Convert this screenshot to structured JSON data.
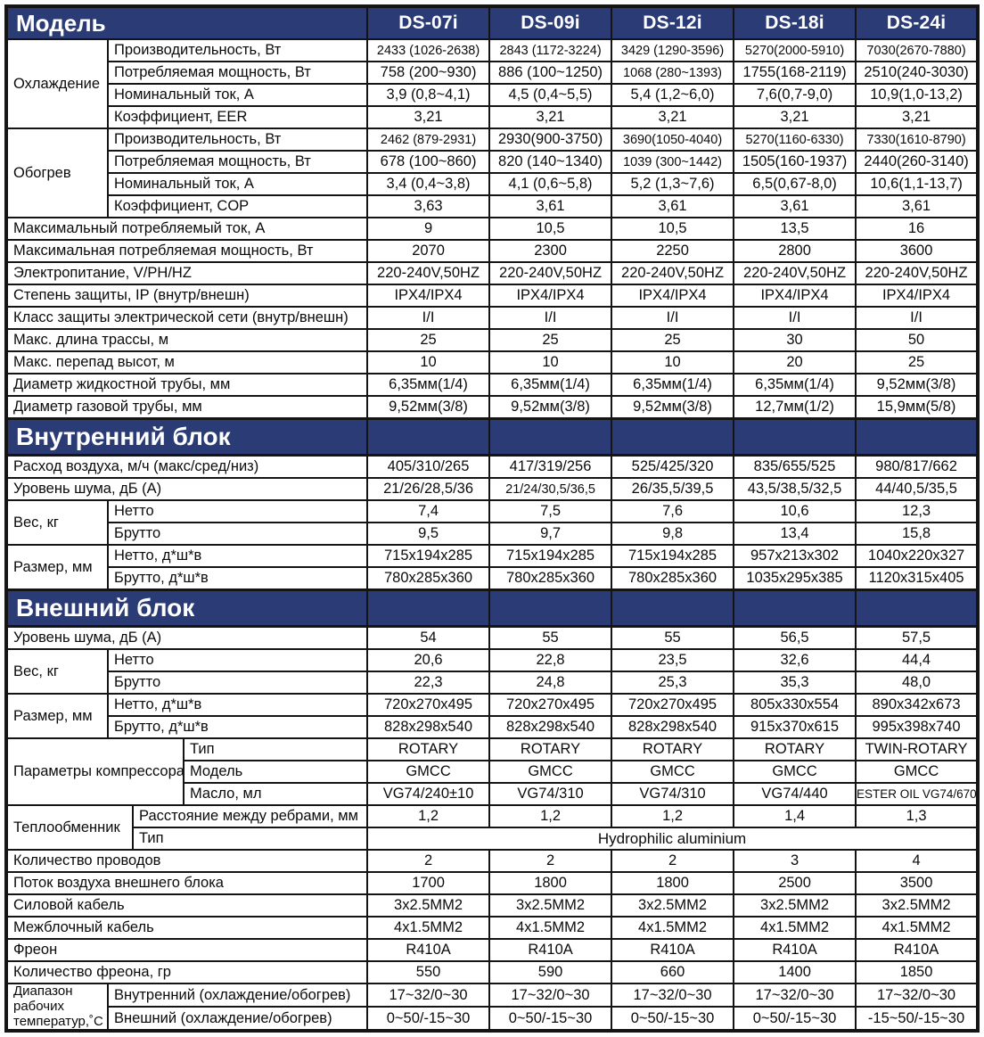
{
  "colors": {
    "accent": "#2b3b76",
    "border": "#141414",
    "text": "#0b0b0b",
    "header_text": "#ffffff"
  },
  "table": {
    "model_label": "Модель",
    "models": [
      "DS-07i",
      "DS-09i",
      "DS-12i",
      "DS-18i",
      "DS-24i"
    ],
    "rows": [
      {
        "group": {
          "label": "Охлаждение",
          "rows": 4,
          "cols": 1
        },
        "label": "Производительность, Вт",
        "values": [
          "2433 (1026-2638)",
          "2843 (1172-3224)",
          "3429 (1290-3596)",
          "5270(2000-5910)",
          "7030(2670-7880)"
        ]
      },
      {
        "label": "Потребляемая мощность, Вт",
        "values": [
          "758 (200~930)",
          "886 (100~1250)",
          "1068 (280~1393)",
          "1755(168-2119)",
          "2510(240-3030)"
        ]
      },
      {
        "label": "Номинальный ток, А",
        "values": [
          "3,9 (0,8~4,1)",
          "4,5 (0,4~5,5)",
          "5,4 (1,2~6,0)",
          "7,6(0,7-9,0)",
          "10,9(1,0-13,2)"
        ]
      },
      {
        "label": "Коэффициент, EER",
        "values": [
          "3,21",
          "3,21",
          "3,21",
          "3,21",
          "3,21"
        ]
      },
      {
        "group": {
          "label": "Обогрев",
          "rows": 4,
          "cols": 1
        },
        "label": "Производительность, Вт",
        "values": [
          "2462 (879-2931)",
          "2930(900-3750)",
          "3690(1050-4040)",
          "5270(1160-6330)",
          "7330(1610-8790)"
        ]
      },
      {
        "label": "Потребляемая мощность, Вт",
        "values": [
          "678 (100~860)",
          "820 (140~1340)",
          "1039 (300~1442)",
          "1505(160-1937)",
          "2440(260-3140)"
        ]
      },
      {
        "label": "Номинальный ток, А",
        "values": [
          "3,4 (0,4~3,8)",
          "4,1 (0,6~5,8)",
          "5,2 (1,3~7,6)",
          "6,5(0,67-8,0)",
          "10,6(1,1-13,7)"
        ]
      },
      {
        "label": "Коэффициент, COP",
        "values": [
          "3,63",
          "3,61",
          "3,61",
          "3,61",
          "3,61"
        ]
      },
      {
        "label": "Максимальный потребляемый ток, А",
        "full": true,
        "values": [
          "9",
          "10,5",
          "10,5",
          "13,5",
          "16"
        ]
      },
      {
        "label": "Максимальная потребляемая мощность, Вт",
        "full": true,
        "values": [
          "2070",
          "2300",
          "2250",
          "2800",
          "3600"
        ]
      },
      {
        "label": "Электропитание, V/PH/HZ",
        "full": true,
        "values": [
          "220-240V,50HZ",
          "220-240V,50HZ",
          "220-240V,50HZ",
          "220-240V,50HZ",
          "220-240V,50HZ"
        ]
      },
      {
        "label": "Степень защиты, IP (внутр/внешн)",
        "full": true,
        "values": [
          "IPX4/IPX4",
          "IPX4/IPX4",
          "IPX4/IPX4",
          "IPX4/IPX4",
          "IPX4/IPX4"
        ]
      },
      {
        "label": "Класс защиты электрической сети (внутр/внешн)",
        "full": true,
        "values": [
          "I/I",
          "I/I",
          "I/I",
          "I/I",
          "I/I"
        ]
      },
      {
        "label": "Макс. длина трассы, м",
        "full": true,
        "values": [
          "25",
          "25",
          "25",
          "30",
          "50"
        ]
      },
      {
        "label": "Макс. перепад высот, м",
        "full": true,
        "values": [
          "10",
          "10",
          "10",
          "20",
          "25"
        ]
      },
      {
        "label": "Диаметр жидкостной трубы, мм",
        "full": true,
        "values": [
          "6,35мм(1/4)",
          "6,35мм(1/4)",
          "6,35мм(1/4)",
          "6,35мм(1/4)",
          "9,52мм(3/8)"
        ]
      },
      {
        "label": "Диаметр газовой трубы, мм",
        "full": true,
        "values": [
          "9,52мм(3/8)",
          "9,52мм(3/8)",
          "9,52мм(3/8)",
          "12,7мм(1/2)",
          "15,9мм(5/8)"
        ]
      },
      {
        "section": "Внутренний блок"
      },
      {
        "label": "Расход воздуха, м/ч (макс/сред/низ)",
        "full": true,
        "values": [
          "405/310/265",
          "417/319/256",
          "525/425/320",
          "835/655/525",
          "980/817/662"
        ]
      },
      {
        "label": "Уровень шума, дБ (А)",
        "full": true,
        "values": [
          "21/26/28,5/36",
          "21/24/30,5/36,5",
          "26/35,5/39,5",
          "43,5/38,5/32,5",
          "44/40,5/35,5"
        ]
      },
      {
        "group": {
          "label": "Вес, кг",
          "rows": 2,
          "cols": 1
        },
        "label": "Нетто",
        "values": [
          "7,4",
          "7,5",
          "7,6",
          "10,6",
          "12,3"
        ]
      },
      {
        "label": "Брутто",
        "values": [
          "9,5",
          "9,7",
          "9,8",
          "13,4",
          "15,8"
        ]
      },
      {
        "group": {
          "label": "Размер, мм",
          "rows": 2,
          "cols": 1
        },
        "label": "Нетто, д*ш*в",
        "values": [
          "715x194x285",
          "715x194x285",
          "715x194x285",
          "957x213x302",
          "1040x220x327"
        ]
      },
      {
        "label": "Брутто, д*ш*в",
        "values": [
          "780x285x360",
          "780x285x360",
          "780x285x360",
          "1035x295x385",
          "1120x315x405"
        ]
      },
      {
        "section": "Внешний блок"
      },
      {
        "label": "Уровень шума, дБ (А)",
        "full": true,
        "values": [
          "54",
          "55",
          "55",
          "56,5",
          "57,5"
        ]
      },
      {
        "group": {
          "label": "Вес, кг",
          "rows": 2,
          "cols": 1
        },
        "label": "Нетто",
        "values": [
          "20,6",
          "22,8",
          "23,5",
          "32,6",
          "44,4"
        ]
      },
      {
        "label": "Брутто",
        "values": [
          "22,3",
          "24,8",
          "25,3",
          "35,3",
          "48,0"
        ]
      },
      {
        "group": {
          "label": "Размер, мм",
          "rows": 2,
          "cols": 1
        },
        "label": "Нетто, д*ш*в",
        "values": [
          "720x270x495",
          "720x270x495",
          "720x270x495",
          "805x330x554",
          "890x342x673"
        ]
      },
      {
        "label": "Брутто, д*ш*в",
        "values": [
          "828x298x540",
          "828x298x540",
          "828x298x540",
          "915x370x615",
          "995x398x740"
        ]
      },
      {
        "group": {
          "label": "Параметры компрессора",
          "rows": 3,
          "cols": 3
        },
        "label": "Тип",
        "values": [
          "ROTARY",
          "ROTARY",
          "ROTARY",
          "ROTARY",
          "TWIN-ROTARY"
        ]
      },
      {
        "label": "Модель",
        "values": [
          "GMCC",
          "GMCC",
          "GMCC",
          "GMCC",
          "GMCC"
        ]
      },
      {
        "label": "Масло, мл",
        "values": [
          "VG74/240±10",
          "VG74/310",
          "VG74/310",
          "VG74/440",
          "ESTER OIL VG74/670"
        ]
      },
      {
        "group": {
          "label": "Теплообменник",
          "rows": 2,
          "cols": 2
        },
        "label": "Расстояние между ребрами, мм",
        "values": [
          "1,2",
          "1,2",
          "1,2",
          "1,4",
          "1,3"
        ]
      },
      {
        "label": "Тип",
        "value_span": "Hydrophilic aluminium"
      },
      {
        "label": "Количество проводов",
        "full": true,
        "values": [
          "2",
          "2",
          "2",
          "3",
          "4"
        ]
      },
      {
        "label": "Поток воздуха внешнего блока",
        "full": true,
        "values": [
          "1700",
          "1800",
          "1800",
          "2500",
          "3500"
        ]
      },
      {
        "label": "Силовой кабель",
        "full": true,
        "values": [
          "3x2.5MM2",
          "3x2.5MM2",
          "3x2.5MM2",
          "3x2.5MM2",
          "3x2.5MM2"
        ]
      },
      {
        "label": "Межблочный кабель",
        "full": true,
        "values": [
          "4x1.5MM2",
          "4x1.5MM2",
          "4x1.5MM2",
          "4x1.5MM2",
          "4x1.5MM2"
        ]
      },
      {
        "label": "Фреон",
        "full": true,
        "values": [
          "R410A",
          "R410A",
          "R410A",
          "R410A",
          "R410A"
        ]
      },
      {
        "label": "Количество фреона, гр",
        "full": true,
        "values": [
          "550",
          "590",
          "660",
          "1400",
          "1850"
        ]
      },
      {
        "group": {
          "label": "Диапазон\nрабочих\nтемператур,˚С",
          "rows": 2,
          "cols": 1,
          "multiline": true
        },
        "label": "Внутренний (охлаждение/обогрев)",
        "values": [
          "17~32/0~30",
          "17~32/0~30",
          "17~32/0~30",
          "17~32/0~30",
          "17~32/0~30"
        ]
      },
      {
        "label": "Внешний (охлаждение/обогрев)",
        "values": [
          "0~50/-15~30",
          "0~50/-15~30",
          "0~50/-15~30",
          "0~50/-15~30",
          "-15~50/-15~30"
        ]
      }
    ]
  }
}
